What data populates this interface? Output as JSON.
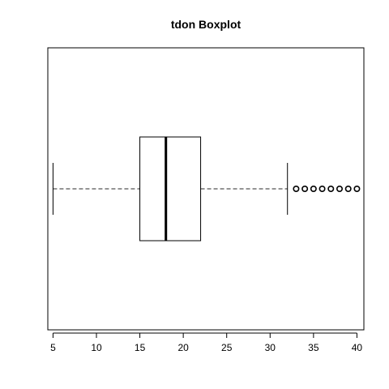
{
  "chart_data": {
    "type": "boxplot",
    "orientation": "horizontal",
    "title": "tdon Boxplot",
    "xlabel": "",
    "ylabel": "",
    "xlim": [
      4.4,
      40.8
    ],
    "ticks": [
      5,
      10,
      15,
      20,
      25,
      30,
      35,
      40
    ],
    "tick_labels": [
      "5",
      "10",
      "15",
      "20",
      "25",
      "30",
      "35",
      "40"
    ],
    "box": {
      "whisker_low": 5,
      "q1": 15,
      "median": 18,
      "q3": 22,
      "whisker_high": 32
    },
    "outliers": [
      33,
      34,
      35,
      36,
      37,
      38,
      39,
      40
    ],
    "grid": false
  }
}
